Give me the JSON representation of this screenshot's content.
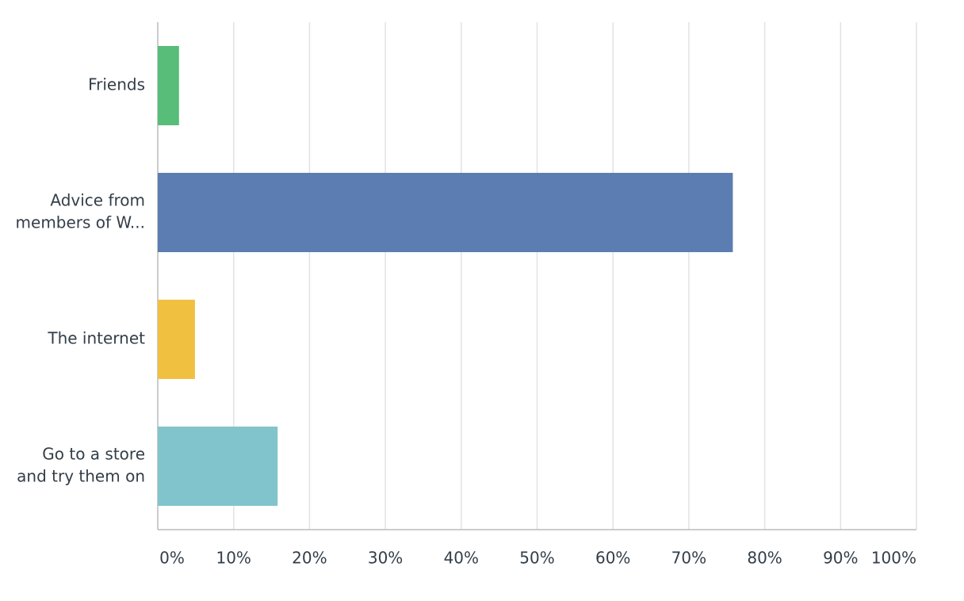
{
  "chart_data": {
    "type": "hbar",
    "categories": [
      [
        "Friends"
      ],
      [
        "Advice from",
        "members of W..."
      ],
      [
        "The internet"
      ],
      [
        "Go to a store",
        "and try them on"
      ]
    ],
    "values": [
      2.8,
      75.8,
      4.9,
      15.8
    ],
    "colors": [
      "#57bd78",
      "#5b7db1",
      "#f0c040",
      "#82c4cb"
    ],
    "xlim": [
      0,
      100
    ],
    "xticks": [
      {
        "value": 0,
        "label": "0%"
      },
      {
        "value": 10,
        "label": "10%"
      },
      {
        "value": 20,
        "label": "20%"
      },
      {
        "value": 30,
        "label": "30%"
      },
      {
        "value": 40,
        "label": "40%"
      },
      {
        "value": 50,
        "label": "50%"
      },
      {
        "value": 60,
        "label": "60%"
      },
      {
        "value": 70,
        "label": "70%"
      },
      {
        "value": 80,
        "label": "80%"
      },
      {
        "value": 90,
        "label": "90%"
      },
      {
        "value": 100,
        "label": "100%"
      }
    ],
    "grid": true
  }
}
